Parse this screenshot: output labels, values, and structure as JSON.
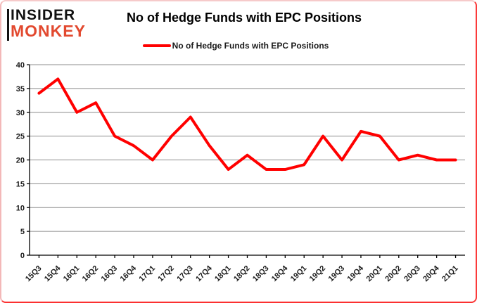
{
  "logo": {
    "line1": "INSIDER",
    "line2": "MONKEY",
    "accent_color": "#e2492f"
  },
  "title": "No of Hedge Funds with EPC Positions",
  "legend": {
    "label": "No of Hedge Funds with EPC Positions",
    "line_color": "#ff0000"
  },
  "chart_data": {
    "type": "line",
    "title": "No of Hedge Funds with EPC Positions",
    "categories": [
      "15Q3",
      "15Q4",
      "16Q1",
      "16Q2",
      "16Q3",
      "16Q4",
      "17Q1",
      "17Q2",
      "17Q3",
      "17Q4",
      "18Q1",
      "18Q2",
      "18Q3",
      "18Q4",
      "19Q1",
      "19Q2",
      "19Q3",
      "19Q4",
      "20Q1",
      "20Q2",
      "20Q3",
      "20Q4",
      "21Q1"
    ],
    "series": [
      {
        "name": "No of Hedge Funds with EPC Positions",
        "color": "#ff0000",
        "values": [
          34,
          37,
          30,
          32,
          25,
          23,
          20,
          25,
          29,
          23,
          18,
          21,
          18,
          18,
          19,
          25,
          20,
          26,
          25,
          20,
          21,
          20,
          20
        ]
      }
    ],
    "xlabel": "",
    "ylabel": "",
    "ylim": [
      0,
      40
    ],
    "ytick_step": 5,
    "y_tick_labels": [
      "0",
      "5",
      "10",
      "15",
      "20",
      "25",
      "30",
      "35",
      "40"
    ],
    "grid": "horizontal",
    "legend_position": "top"
  },
  "colors": {
    "grid": "#8c8c8c",
    "axis": "#000000",
    "tick_text": "#1a1a1a"
  }
}
